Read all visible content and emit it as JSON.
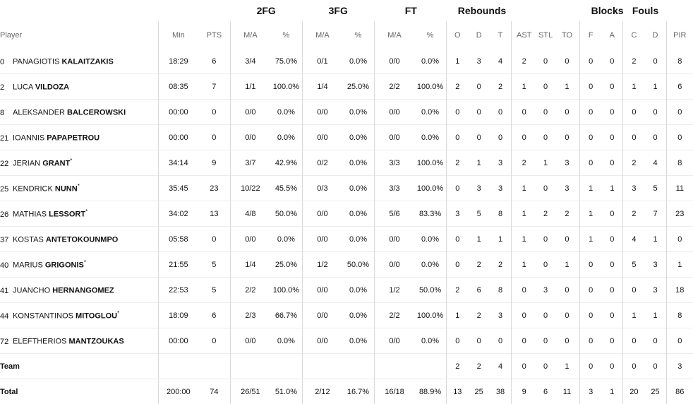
{
  "group_headers": {
    "fg2": "2FG",
    "fg3": "3FG",
    "ft": "FT",
    "rebounds": "Rebounds",
    "blocks": "Blocks",
    "fouls": "Fouls"
  },
  "columns": {
    "player": "Player",
    "min": "Min",
    "pts": "PTS",
    "fg2_ma": "M/A",
    "fg2_pct": "%",
    "fg3_ma": "M/A",
    "fg3_pct": "%",
    "ft_ma": "M/A",
    "ft_pct": "%",
    "o": "O",
    "d": "D",
    "t": "T",
    "ast": "AST",
    "stl": "STL",
    "to": "TO",
    "blk_f": "F",
    "blk_a": "A",
    "foul_c": "C",
    "foul_d": "D",
    "pir": "PIR"
  },
  "players": [
    {
      "no": "0",
      "first": "PANAGIOTIS",
      "last": "KALAITZAKIS",
      "star": "",
      "min": "18:29",
      "pts": "6",
      "fg2_ma": "3/4",
      "fg2_pct": "75.0%",
      "fg3_ma": "0/1",
      "fg3_pct": "0.0%",
      "ft_ma": "0/0",
      "ft_pct": "0.0%",
      "o": "1",
      "d": "3",
      "t": "4",
      "ast": "2",
      "stl": "0",
      "to": "0",
      "blk_f": "0",
      "blk_a": "0",
      "foul_c": "2",
      "foul_d": "0",
      "pir": "8"
    },
    {
      "no": "2",
      "first": "LUCA",
      "last": "VILDOZA",
      "star": "",
      "min": "08:35",
      "pts": "7",
      "fg2_ma": "1/1",
      "fg2_pct": "100.0%",
      "fg3_ma": "1/4",
      "fg3_pct": "25.0%",
      "ft_ma": "2/2",
      "ft_pct": "100.0%",
      "o": "2",
      "d": "0",
      "t": "2",
      "ast": "1",
      "stl": "0",
      "to": "1",
      "blk_f": "0",
      "blk_a": "0",
      "foul_c": "1",
      "foul_d": "1",
      "pir": "6"
    },
    {
      "no": "8",
      "first": "ALEKSANDER",
      "last": "BALCEROWSKI",
      "star": "",
      "min": "00:00",
      "pts": "0",
      "fg2_ma": "0/0",
      "fg2_pct": "0.0%",
      "fg3_ma": "0/0",
      "fg3_pct": "0.0%",
      "ft_ma": "0/0",
      "ft_pct": "0.0%",
      "o": "0",
      "d": "0",
      "t": "0",
      "ast": "0",
      "stl": "0",
      "to": "0",
      "blk_f": "0",
      "blk_a": "0",
      "foul_c": "0",
      "foul_d": "0",
      "pir": "0"
    },
    {
      "no": "21",
      "first": "IOANNIS",
      "last": "PAPAPETROU",
      "star": "",
      "min": "00:00",
      "pts": "0",
      "fg2_ma": "0/0",
      "fg2_pct": "0.0%",
      "fg3_ma": "0/0",
      "fg3_pct": "0.0%",
      "ft_ma": "0/0",
      "ft_pct": "0.0%",
      "o": "0",
      "d": "0",
      "t": "0",
      "ast": "0",
      "stl": "0",
      "to": "0",
      "blk_f": "0",
      "blk_a": "0",
      "foul_c": "0",
      "foul_d": "0",
      "pir": "0"
    },
    {
      "no": "22",
      "first": "JERIAN",
      "last": "GRANT",
      "star": "*",
      "min": "34:14",
      "pts": "9",
      "fg2_ma": "3/7",
      "fg2_pct": "42.9%",
      "fg3_ma": "0/2",
      "fg3_pct": "0.0%",
      "ft_ma": "3/3",
      "ft_pct": "100.0%",
      "o": "2",
      "d": "1",
      "t": "3",
      "ast": "2",
      "stl": "1",
      "to": "3",
      "blk_f": "0",
      "blk_a": "0",
      "foul_c": "2",
      "foul_d": "4",
      "pir": "8"
    },
    {
      "no": "25",
      "first": "KENDRICK",
      "last": "NUNN",
      "star": "*",
      "min": "35:45",
      "pts": "23",
      "fg2_ma": "10/22",
      "fg2_pct": "45.5%",
      "fg3_ma": "0/3",
      "fg3_pct": "0.0%",
      "ft_ma": "3/3",
      "ft_pct": "100.0%",
      "o": "0",
      "d": "3",
      "t": "3",
      "ast": "1",
      "stl": "0",
      "to": "3",
      "blk_f": "1",
      "blk_a": "1",
      "foul_c": "3",
      "foul_d": "5",
      "pir": "11"
    },
    {
      "no": "26",
      "first": "MATHIAS",
      "last": "LESSORT",
      "star": "*",
      "min": "34:02",
      "pts": "13",
      "fg2_ma": "4/8",
      "fg2_pct": "50.0%",
      "fg3_ma": "0/0",
      "fg3_pct": "0.0%",
      "ft_ma": "5/6",
      "ft_pct": "83.3%",
      "o": "3",
      "d": "5",
      "t": "8",
      "ast": "1",
      "stl": "2",
      "to": "2",
      "blk_f": "1",
      "blk_a": "0",
      "foul_c": "2",
      "foul_d": "7",
      "pir": "23"
    },
    {
      "no": "37",
      "first": "KOSTAS",
      "last": "ANTETOKOUNMPO",
      "star": "",
      "min": "05:58",
      "pts": "0",
      "fg2_ma": "0/0",
      "fg2_pct": "0.0%",
      "fg3_ma": "0/0",
      "fg3_pct": "0.0%",
      "ft_ma": "0/0",
      "ft_pct": "0.0%",
      "o": "0",
      "d": "1",
      "t": "1",
      "ast": "1",
      "stl": "0",
      "to": "0",
      "blk_f": "1",
      "blk_a": "0",
      "foul_c": "4",
      "foul_d": "1",
      "pir": "0"
    },
    {
      "no": "40",
      "first": "MARIUS",
      "last": "GRIGONIS",
      "star": "*",
      "min": "21:55",
      "pts": "5",
      "fg2_ma": "1/4",
      "fg2_pct": "25.0%",
      "fg3_ma": "1/2",
      "fg3_pct": "50.0%",
      "ft_ma": "0/0",
      "ft_pct": "0.0%",
      "o": "0",
      "d": "2",
      "t": "2",
      "ast": "1",
      "stl": "0",
      "to": "1",
      "blk_f": "0",
      "blk_a": "0",
      "foul_c": "5",
      "foul_d": "3",
      "pir": "1"
    },
    {
      "no": "41",
      "first": "JUANCHO",
      "last": "HERNANGOMEZ",
      "star": "",
      "min": "22:53",
      "pts": "5",
      "fg2_ma": "2/2",
      "fg2_pct": "100.0%",
      "fg3_ma": "0/0",
      "fg3_pct": "0.0%",
      "ft_ma": "1/2",
      "ft_pct": "50.0%",
      "o": "2",
      "d": "6",
      "t": "8",
      "ast": "0",
      "stl": "3",
      "to": "0",
      "blk_f": "0",
      "blk_a": "0",
      "foul_c": "0",
      "foul_d": "3",
      "pir": "18"
    },
    {
      "no": "44",
      "first": "KONSTANTINOS",
      "last": "MITOGLOU",
      "star": "*",
      "min": "18:09",
      "pts": "6",
      "fg2_ma": "2/3",
      "fg2_pct": "66.7%",
      "fg3_ma": "0/0",
      "fg3_pct": "0.0%",
      "ft_ma": "2/2",
      "ft_pct": "100.0%",
      "o": "1",
      "d": "2",
      "t": "3",
      "ast": "0",
      "stl": "0",
      "to": "0",
      "blk_f": "0",
      "blk_a": "0",
      "foul_c": "1",
      "foul_d": "1",
      "pir": "8"
    },
    {
      "no": "72",
      "first": "ELEFTHERIOS",
      "last": "MANTZOUKAS",
      "star": "",
      "min": "00:00",
      "pts": "0",
      "fg2_ma": "0/0",
      "fg2_pct": "0.0%",
      "fg3_ma": "0/0",
      "fg3_pct": "0.0%",
      "ft_ma": "0/0",
      "ft_pct": "0.0%",
      "o": "0",
      "d": "0",
      "t": "0",
      "ast": "0",
      "stl": "0",
      "to": "0",
      "blk_f": "0",
      "blk_a": "0",
      "foul_c": "0",
      "foul_d": "0",
      "pir": "0"
    }
  ],
  "team": {
    "label": "Team",
    "o": "2",
    "d": "2",
    "t": "4",
    "ast": "0",
    "stl": "0",
    "to": "1",
    "blk_f": "0",
    "blk_a": "0",
    "foul_c": "0",
    "foul_d": "0",
    "pir": "3"
  },
  "total": {
    "label": "Total",
    "min": "200:00",
    "pts": "74",
    "fg2_ma": "26/51",
    "fg2_pct": "51.0%",
    "fg3_ma": "2/12",
    "fg3_pct": "16.7%",
    "ft_ma": "16/18",
    "ft_pct": "88.9%",
    "o": "13",
    "d": "25",
    "t": "38",
    "ast": "9",
    "stl": "6",
    "to": "11",
    "blk_f": "3",
    "blk_a": "1",
    "foul_c": "20",
    "foul_d": "25",
    "pir": "86"
  }
}
